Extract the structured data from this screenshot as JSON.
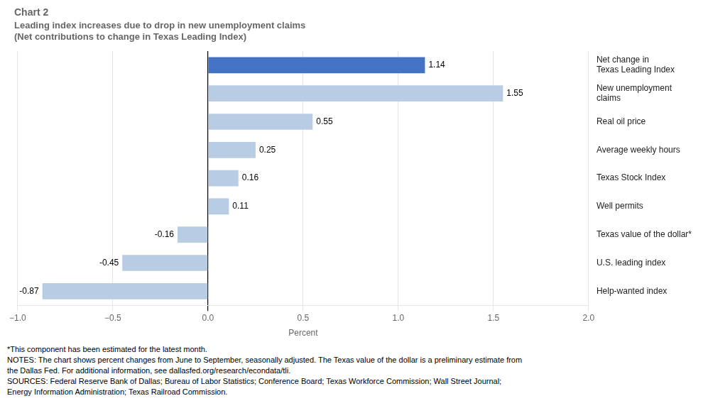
{
  "chart_data": {
    "type": "bar",
    "orientation": "horizontal",
    "title": "Chart 2",
    "subtitle": [
      "Leading index increases due to drop in new unemployment claims",
      "(Net contributions to change in Texas Leading Index)"
    ],
    "categories": [
      "Net change in\nTexas Leading Index",
      "New unemployment\nclaims",
      "Real oil price",
      "Average weekly hours",
      "Texas Stock Index",
      "Well permits",
      "Texas value of the dollar*",
      "U.S. leading index",
      "Help-wanted index"
    ],
    "values": [
      1.14,
      1.55,
      0.55,
      0.25,
      0.16,
      0.11,
      -0.16,
      -0.45,
      -0.87
    ],
    "colors": [
      "#4472C4",
      "#B8CCE4",
      "#B8CCE4",
      "#B8CCE4",
      "#B8CCE4",
      "#B8CCE4",
      "#B8CCE4",
      "#B8CCE4",
      "#B8CCE4"
    ],
    "xlabel": "Percent",
    "xlim": [
      -1.0,
      2.0
    ],
    "xticks": [
      {
        "value": -1.0,
        "label": "−1.0"
      },
      {
        "value": -0.5,
        "label": "−0.5"
      },
      {
        "value": 0.0,
        "label": "0.0"
      },
      0.5,
      {
        "value": 1.0,
        "label": "1.0"
      },
      1.5,
      {
        "value": 2.0,
        "label": "2.0"
      }
    ],
    "grid": true,
    "data_labels": true,
    "annotations": [
      "*This component has been estimated for the latest month.",
      "NOTES: The chart shows percent changes from June to September, seasonally adjusted. The Texas value of the dollar is a preliminary estimate from",
      "the Dallas Fed. For additional information, see dallasfed.org/research/econdata/tli.",
      "SOURCES: Federal Reserve Bank of Dallas; Bureau of Labor Statistics; Conference Board; Texas Workforce Commission; Wall Street Journal;",
      "Energy Information Administration; Texas Railroad Commission."
    ]
  }
}
